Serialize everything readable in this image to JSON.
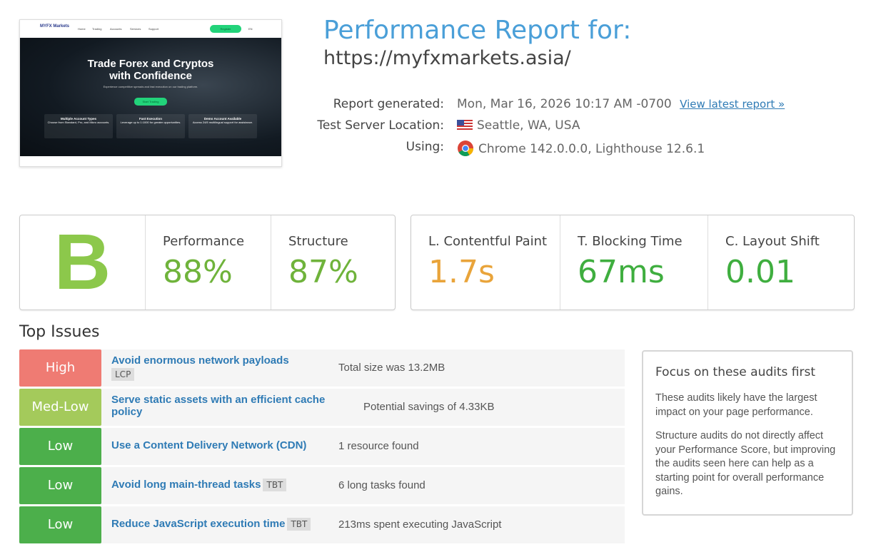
{
  "thumbnail": {
    "logo": "MYFX Markets",
    "nav": [
      "Home",
      "Trading",
      "Accounts",
      "Services",
      "Support"
    ],
    "button": "Register",
    "lang": "EN",
    "headline": "Trade Forex and Cryptos with Confidence",
    "sub": "Experience competitive spreads and fast execution on our trading platform.",
    "cta": "Start Trading",
    "cards": [
      {
        "title": "Multiple Account Types",
        "text": "Choose from Standard, Pro, and Micro accounts."
      },
      {
        "title": "Fast Execution",
        "text": "Leverage up to 1:1000 for greater opportunities."
      },
      {
        "title": "Demo Account Available",
        "text": "Access 24/5 multilingual support for assistance."
      }
    ]
  },
  "header": {
    "title": "Performance Report for:",
    "url": "https://myfxmarkets.asia/"
  },
  "meta": {
    "generated_label": "Report generated:",
    "generated": "Mon, Mar 16, 2026 10:17 AM -0700",
    "latest_link": "View latest report »",
    "location_label": "Test Server Location:",
    "location": "Seattle, WA, USA",
    "using_label": "Using:",
    "using": "Chrome 142.0.0.0, Lighthouse 12.6.1"
  },
  "grade": "B",
  "scores": [
    {
      "label": "Performance",
      "value": "88%",
      "color": "#6fb33b"
    },
    {
      "label": "Structure",
      "value": "87%",
      "color": "#6fb33b"
    }
  ],
  "vitals": [
    {
      "label": "L. Contentful Paint",
      "value": "1.7s",
      "color": "#e9a43a"
    },
    {
      "label": "T. Blocking Time",
      "value": "67ms",
      "color": "#3fae3f"
    },
    {
      "label": "C. Layout Shift",
      "value": "0.01",
      "color": "#3fae3f"
    }
  ],
  "issues_title": "Top Issues",
  "issues": [
    {
      "severity": "High",
      "color": "#ef7b73",
      "title": "Avoid enormous network payloads",
      "tag": "LCP",
      "detail": "Total size was 13.2MB"
    },
    {
      "severity": "Med-Low",
      "color": "#a4ca5b",
      "title": "Serve static assets with an efficient cache policy",
      "detail": "Potential savings of 4.33KB"
    },
    {
      "severity": "Low",
      "color": "#4caf4b",
      "title": "Use a Content Delivery Network (CDN)",
      "detail": "1 resource found"
    },
    {
      "severity": "Low",
      "color": "#4caf4b",
      "title": "Avoid long main-thread tasks",
      "tag": "TBT",
      "detail": "6 long tasks found"
    },
    {
      "severity": "Low",
      "color": "#4caf4b",
      "title": "Reduce JavaScript execution time",
      "tag": "TBT",
      "detail": "213ms spent executing JavaScript"
    }
  ],
  "sidebar": {
    "title": "Focus on these audits first",
    "paragraphs": [
      "These audits likely have the largest impact on your page performance.",
      "Structure audits do not directly affect your Performance Score, but improving the audits seen here can help as a starting point for overall performance gains."
    ]
  }
}
